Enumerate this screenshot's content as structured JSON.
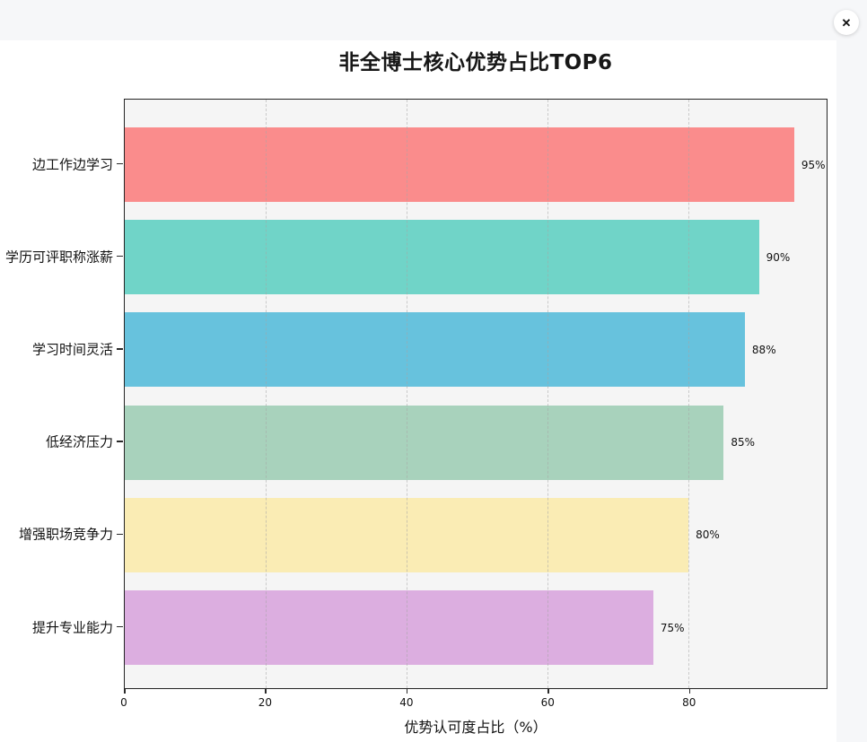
{
  "window": {
    "close_icon": "✕"
  },
  "chart_data": {
    "type": "bar",
    "orientation": "horizontal",
    "title": "非全博士核心优势占比TOP6",
    "xlabel": "优势认可度占比（%）",
    "categories": [
      "边工作边学习",
      "学历可评职称涨薪",
      "学习时间灵活",
      "低经济压力",
      "增强职场竞争力",
      "提升专业能力"
    ],
    "values": [
      95,
      90,
      88,
      85,
      80,
      75
    ],
    "data_labels": [
      "95%",
      "90%",
      "88%",
      "85%",
      "80%",
      "75%"
    ],
    "bar_colors": [
      "#FA8C8C",
      "#70D4C8",
      "#67C2DD",
      "#A8D2BC",
      "#FAECB4",
      "#DCAEE0"
    ],
    "x_ticks": [
      0,
      20,
      40,
      60,
      80
    ],
    "xlim": [
      0,
      99.6
    ],
    "grid": "vertical-dashed",
    "legend": "none",
    "plot_bg": "#f5f5f5",
    "colors": {
      "page_bg": "#f6f7f9",
      "card_bg": "#ffffff",
      "axis": "#242424"
    }
  }
}
